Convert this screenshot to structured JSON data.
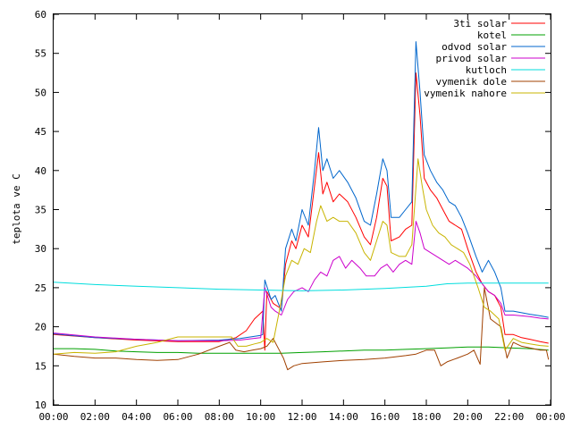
{
  "chart_data": {
    "type": "line",
    "title": "",
    "xlabel": "",
    "ylabel": "teplota ve C",
    "ylim": [
      10,
      60
    ],
    "xlim": [
      0,
      24
    ],
    "grid": false,
    "legend_position": "top-right",
    "y_ticks": [
      "10",
      "15",
      "20",
      "25",
      "30",
      "35",
      "40",
      "45",
      "50",
      "55",
      "60"
    ],
    "x_ticks": [
      "00:00",
      "02:00",
      "04:00",
      "06:00",
      "08:00",
      "10:00",
      "12:00",
      "14:00",
      "16:00",
      "18:00",
      "20:00",
      "22:00",
      "00:00"
    ],
    "series": [
      {
        "name": "3ti solar",
        "color": "#ff0000",
        "points": [
          [
            0,
            19.0
          ],
          [
            2,
            18.6
          ],
          [
            4,
            18.3
          ],
          [
            6,
            18.1
          ],
          [
            8,
            18.1
          ],
          [
            8.8,
            18.6
          ],
          [
            9.3,
            19.5
          ],
          [
            9.7,
            21.0
          ],
          [
            10.1,
            22.0
          ],
          [
            10.2,
            17.0
          ],
          [
            10.3,
            24.5
          ],
          [
            10.6,
            23.0
          ],
          [
            11.0,
            22.3
          ],
          [
            11.2,
            28.0
          ],
          [
            11.5,
            31.0
          ],
          [
            11.7,
            30.0
          ],
          [
            12.0,
            33.0
          ],
          [
            12.3,
            31.5
          ],
          [
            12.6,
            38.0
          ],
          [
            12.8,
            42.3
          ],
          [
            13.0,
            37.0
          ],
          [
            13.2,
            38.5
          ],
          [
            13.5,
            36.0
          ],
          [
            13.8,
            37.0
          ],
          [
            14.2,
            36.0
          ],
          [
            14.6,
            34.0
          ],
          [
            15.0,
            31.5
          ],
          [
            15.3,
            30.5
          ],
          [
            15.6,
            34.0
          ],
          [
            15.9,
            39.0
          ],
          [
            16.1,
            38.0
          ],
          [
            16.3,
            31.0
          ],
          [
            16.7,
            31.5
          ],
          [
            17.0,
            32.5
          ],
          [
            17.3,
            33.0
          ],
          [
            17.5,
            52.5
          ],
          [
            17.7,
            47.0
          ],
          [
            17.9,
            39.0
          ],
          [
            18.2,
            37.5
          ],
          [
            18.5,
            36.5
          ],
          [
            18.8,
            35.0
          ],
          [
            19.1,
            33.5
          ],
          [
            19.4,
            33.0
          ],
          [
            19.7,
            32.5
          ],
          [
            20.0,
            30.0
          ],
          [
            20.4,
            27.0
          ],
          [
            20.7,
            25.5
          ],
          [
            21.0,
            24.5
          ],
          [
            21.3,
            24.0
          ],
          [
            21.6,
            22.5
          ],
          [
            21.8,
            19.0
          ],
          [
            22.2,
            19.0
          ],
          [
            22.6,
            18.6
          ],
          [
            23.0,
            18.4
          ],
          [
            23.5,
            18.1
          ],
          [
            23.9,
            17.9
          ]
        ]
      },
      {
        "name": "kotel",
        "color": "#00a000",
        "points": [
          [
            0,
            17.2
          ],
          [
            1,
            17.2
          ],
          [
            2,
            17.1
          ],
          [
            3,
            16.9
          ],
          [
            4,
            16.8
          ],
          [
            5,
            16.7
          ],
          [
            6,
            16.7
          ],
          [
            7,
            16.6
          ],
          [
            8,
            16.6
          ],
          [
            9,
            16.6
          ],
          [
            10,
            16.6
          ],
          [
            11,
            16.6
          ],
          [
            12,
            16.7
          ],
          [
            13,
            16.8
          ],
          [
            14,
            16.9
          ],
          [
            15,
            17.0
          ],
          [
            16,
            17.0
          ],
          [
            17,
            17.1
          ],
          [
            18,
            17.2
          ],
          [
            19,
            17.3
          ],
          [
            20,
            17.4
          ],
          [
            21,
            17.4
          ],
          [
            22,
            17.3
          ],
          [
            23,
            17.2
          ],
          [
            23.9,
            17.0
          ]
        ]
      },
      {
        "name": "odvod solar",
        "color": "#0066cc",
        "points": [
          [
            0,
            19.1
          ],
          [
            2,
            18.6
          ],
          [
            4,
            18.4
          ],
          [
            6,
            18.2
          ],
          [
            8,
            18.3
          ],
          [
            9,
            18.5
          ],
          [
            10,
            18.9
          ],
          [
            10.1,
            19.0
          ],
          [
            10.2,
            26.0
          ],
          [
            10.5,
            23.5
          ],
          [
            10.7,
            24.0
          ],
          [
            11.0,
            22.0
          ],
          [
            11.2,
            30.0
          ],
          [
            11.5,
            32.5
          ],
          [
            11.7,
            31.0
          ],
          [
            12.0,
            35.0
          ],
          [
            12.3,
            33.0
          ],
          [
            12.6,
            40.0
          ],
          [
            12.8,
            45.5
          ],
          [
            13.0,
            40.0
          ],
          [
            13.2,
            41.5
          ],
          [
            13.5,
            39.0
          ],
          [
            13.8,
            40.0
          ],
          [
            14.2,
            38.5
          ],
          [
            14.6,
            36.5
          ],
          [
            15.0,
            33.5
          ],
          [
            15.3,
            33.0
          ],
          [
            15.6,
            37.0
          ],
          [
            15.9,
            41.5
          ],
          [
            16.1,
            40.0
          ],
          [
            16.3,
            34.0
          ],
          [
            16.7,
            34.0
          ],
          [
            17.0,
            35.0
          ],
          [
            17.3,
            36.0
          ],
          [
            17.5,
            56.5
          ],
          [
            17.7,
            50.0
          ],
          [
            17.9,
            42.0
          ],
          [
            18.2,
            40.0
          ],
          [
            18.5,
            38.5
          ],
          [
            18.8,
            37.5
          ],
          [
            19.1,
            36.0
          ],
          [
            19.4,
            35.5
          ],
          [
            19.7,
            34.0
          ],
          [
            20.0,
            32.0
          ],
          [
            20.4,
            29.0
          ],
          [
            20.7,
            27.0
          ],
          [
            21.0,
            28.5
          ],
          [
            21.3,
            27.0
          ],
          [
            21.6,
            25.0
          ],
          [
            21.8,
            22.0
          ],
          [
            22.2,
            22.0
          ],
          [
            22.6,
            21.8
          ],
          [
            23.0,
            21.6
          ],
          [
            23.5,
            21.4
          ],
          [
            23.9,
            21.2
          ]
        ]
      },
      {
        "name": "privod solar",
        "color": "#cc00cc",
        "points": [
          [
            0,
            19.2
          ],
          [
            2,
            18.7
          ],
          [
            4,
            18.4
          ],
          [
            6,
            18.2
          ],
          [
            8,
            18.2
          ],
          [
            9,
            18.3
          ],
          [
            10,
            18.6
          ],
          [
            10.2,
            25.0
          ],
          [
            10.5,
            22.5
          ],
          [
            10.7,
            22.0
          ],
          [
            11.0,
            21.5
          ],
          [
            11.3,
            23.5
          ],
          [
            11.6,
            24.5
          ],
          [
            12.0,
            25.0
          ],
          [
            12.3,
            24.5
          ],
          [
            12.6,
            26.0
          ],
          [
            12.9,
            27.0
          ],
          [
            13.2,
            26.5
          ],
          [
            13.5,
            28.5
          ],
          [
            13.8,
            29.0
          ],
          [
            14.1,
            27.5
          ],
          [
            14.4,
            28.5
          ],
          [
            14.8,
            27.5
          ],
          [
            15.1,
            26.5
          ],
          [
            15.5,
            26.5
          ],
          [
            15.8,
            27.5
          ],
          [
            16.1,
            28.0
          ],
          [
            16.4,
            27.0
          ],
          [
            16.7,
            28.0
          ],
          [
            17.0,
            28.5
          ],
          [
            17.3,
            28.0
          ],
          [
            17.5,
            33.5
          ],
          [
            17.7,
            32.0
          ],
          [
            17.9,
            30.0
          ],
          [
            18.2,
            29.5
          ],
          [
            18.5,
            29.0
          ],
          [
            18.8,
            28.5
          ],
          [
            19.1,
            28.0
          ],
          [
            19.4,
            28.5
          ],
          [
            19.7,
            28.0
          ],
          [
            20.0,
            27.5
          ],
          [
            20.4,
            26.5
          ],
          [
            20.7,
            25.5
          ],
          [
            21.0,
            24.5
          ],
          [
            21.3,
            24.0
          ],
          [
            21.6,
            23.0
          ],
          [
            21.8,
            21.5
          ],
          [
            22.2,
            21.5
          ],
          [
            22.6,
            21.4
          ],
          [
            23.0,
            21.3
          ],
          [
            23.5,
            21.1
          ],
          [
            23.9,
            21.0
          ]
        ]
      },
      {
        "name": "kutloch",
        "color": "#00dddd",
        "points": [
          [
            0,
            25.7
          ],
          [
            2,
            25.4
          ],
          [
            4,
            25.2
          ],
          [
            6,
            25.0
          ],
          [
            8,
            24.8
          ],
          [
            10,
            24.7
          ],
          [
            12,
            24.6
          ],
          [
            14,
            24.7
          ],
          [
            16,
            24.9
          ],
          [
            18,
            25.2
          ],
          [
            19,
            25.5
          ],
          [
            20,
            25.6
          ],
          [
            22,
            25.6
          ],
          [
            23.9,
            25.6
          ]
        ]
      },
      {
        "name": "vymenik dole",
        "color": "#a04000",
        "points": [
          [
            0,
            16.5
          ],
          [
            1,
            16.2
          ],
          [
            2,
            16.0
          ],
          [
            3,
            16.0
          ],
          [
            4,
            15.8
          ],
          [
            5,
            15.7
          ],
          [
            6,
            15.8
          ],
          [
            7,
            16.5
          ],
          [
            8,
            17.5
          ],
          [
            8.5,
            18.0
          ],
          [
            8.8,
            17.0
          ],
          [
            9.2,
            16.8
          ],
          [
            9.6,
            17.0
          ],
          [
            10.0,
            17.2
          ],
          [
            10.3,
            17.5
          ],
          [
            10.6,
            18.5
          ],
          [
            10.9,
            17.0
          ],
          [
            11.1,
            16.0
          ],
          [
            11.3,
            14.5
          ],
          [
            11.6,
            15.0
          ],
          [
            12.0,
            15.3
          ],
          [
            13.0,
            15.5
          ],
          [
            14.0,
            15.7
          ],
          [
            15.0,
            15.8
          ],
          [
            16.0,
            16.0
          ],
          [
            17.0,
            16.3
          ],
          [
            17.5,
            16.5
          ],
          [
            18.0,
            17.0
          ],
          [
            18.4,
            17.0
          ],
          [
            18.7,
            15.0
          ],
          [
            19.0,
            15.5
          ],
          [
            19.5,
            16.0
          ],
          [
            20.0,
            16.5
          ],
          [
            20.3,
            17.0
          ],
          [
            20.6,
            15.2
          ],
          [
            20.8,
            25.0
          ],
          [
            21.1,
            21.0
          ],
          [
            21.6,
            20.0
          ],
          [
            21.9,
            16.0
          ],
          [
            22.2,
            18.0
          ],
          [
            22.6,
            17.5
          ],
          [
            23.0,
            17.3
          ],
          [
            23.5,
            17.0
          ],
          [
            23.8,
            17.0
          ],
          [
            23.9,
            15.8
          ]
        ]
      },
      {
        "name": "vymenik nahore",
        "color": "#c8b400",
        "points": [
          [
            0,
            16.5
          ],
          [
            1,
            16.7
          ],
          [
            2,
            16.6
          ],
          [
            3,
            16.8
          ],
          [
            4,
            17.5
          ],
          [
            5,
            18.0
          ],
          [
            6,
            18.7
          ],
          [
            7,
            18.7
          ],
          [
            8,
            18.7
          ],
          [
            8.6,
            18.7
          ],
          [
            8.9,
            17.5
          ],
          [
            9.3,
            17.5
          ],
          [
            9.7,
            17.8
          ],
          [
            10.0,
            18.0
          ],
          [
            10.3,
            18.5
          ],
          [
            10.6,
            18.0
          ],
          [
            10.9,
            22.0
          ],
          [
            11.2,
            26.5
          ],
          [
            11.5,
            28.5
          ],
          [
            11.8,
            28.0
          ],
          [
            12.1,
            30.0
          ],
          [
            12.4,
            29.5
          ],
          [
            12.7,
            33.5
          ],
          [
            12.9,
            35.5
          ],
          [
            13.2,
            33.5
          ],
          [
            13.5,
            34.0
          ],
          [
            13.8,
            33.5
          ],
          [
            14.2,
            33.5
          ],
          [
            14.6,
            32.0
          ],
          [
            15.0,
            29.5
          ],
          [
            15.3,
            28.5
          ],
          [
            15.6,
            31.0
          ],
          [
            15.9,
            33.5
          ],
          [
            16.1,
            33.0
          ],
          [
            16.3,
            29.5
          ],
          [
            16.7,
            29.0
          ],
          [
            17.0,
            29.0
          ],
          [
            17.3,
            30.5
          ],
          [
            17.6,
            41.5
          ],
          [
            17.8,
            38.0
          ],
          [
            18.0,
            35.0
          ],
          [
            18.3,
            33.0
          ],
          [
            18.6,
            32.0
          ],
          [
            18.9,
            31.5
          ],
          [
            19.2,
            30.5
          ],
          [
            19.5,
            30.0
          ],
          [
            19.8,
            29.5
          ],
          [
            20.1,
            28.0
          ],
          [
            20.5,
            25.0
          ],
          [
            20.8,
            22.5
          ],
          [
            21.1,
            22.0
          ],
          [
            21.5,
            21.0
          ],
          [
            21.8,
            17.0
          ],
          [
            22.2,
            18.5
          ],
          [
            22.6,
            18.0
          ],
          [
            23.0,
            17.8
          ],
          [
            23.5,
            17.6
          ],
          [
            23.9,
            17.5
          ]
        ]
      }
    ]
  }
}
